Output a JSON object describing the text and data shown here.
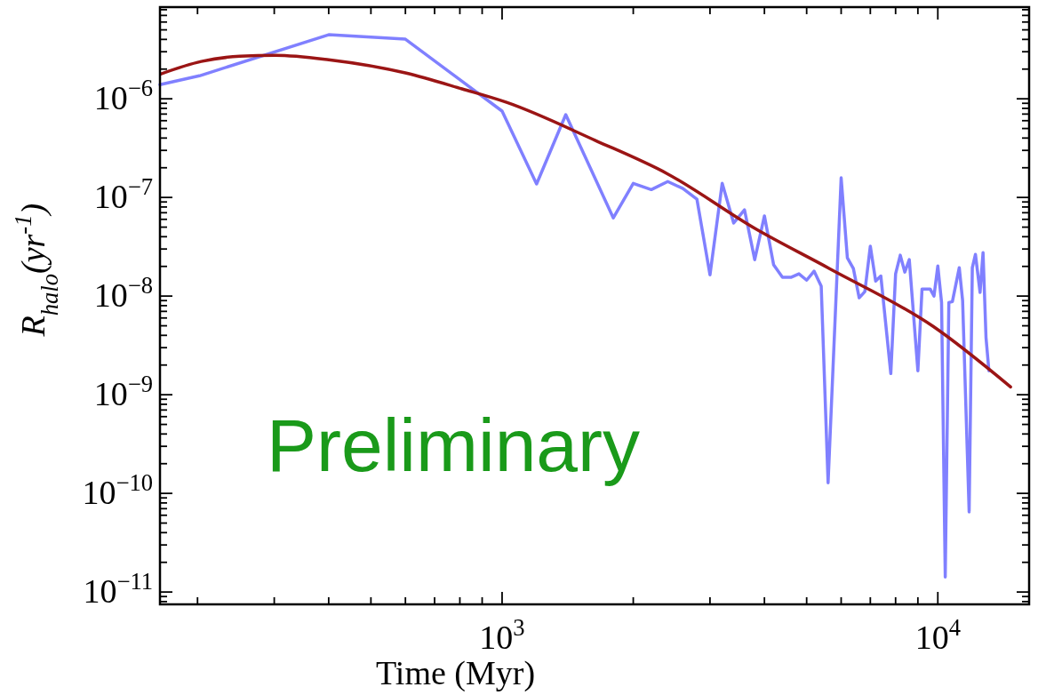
{
  "chart_data": {
    "type": "line",
    "xlabel": "Time (Myr)",
    "ylabel": "R$_{halo}$(yr$^{-1}$)",
    "log": "xy",
    "grid": false,
    "marker": "none",
    "line_style": "solid",
    "xlim": [
      164,
      16200
    ],
    "ylim": [
      7.5e-12,
      8.5e-06
    ],
    "xticks": [
      {
        "value": 200,
        "label": null
      },
      {
        "value": 300,
        "label": null
      },
      {
        "value": 400,
        "label": null
      },
      {
        "value": 500,
        "label": null
      },
      {
        "value": 600,
        "label": null
      },
      {
        "value": 700,
        "label": null
      },
      {
        "value": 800,
        "label": null
      },
      {
        "value": 900,
        "label": null
      },
      {
        "value": 1000,
        "label": "10$^{3}$"
      },
      {
        "value": 2000,
        "label": null
      },
      {
        "value": 3000,
        "label": null
      },
      {
        "value": 4000,
        "label": null
      },
      {
        "value": 5000,
        "label": null
      },
      {
        "value": 6000,
        "label": null
      },
      {
        "value": 7000,
        "label": null
      },
      {
        "value": 8000,
        "label": null
      },
      {
        "value": 9000,
        "label": null
      },
      {
        "value": 10000,
        "label": "10$^{4}$"
      }
    ],
    "yticks": [
      {
        "value": 8e-12,
        "label": null
      },
      {
        "value": 9e-12,
        "label": null
      },
      {
        "value": 1e-11,
        "label": "10$^{−11}$"
      },
      {
        "value": 2e-11,
        "label": null
      },
      {
        "value": 3e-11,
        "label": null
      },
      {
        "value": 4e-11,
        "label": null
      },
      {
        "value": 5e-11,
        "label": null
      },
      {
        "value": 6e-11,
        "label": null
      },
      {
        "value": 7e-11,
        "label": null
      },
      {
        "value": 8e-11,
        "label": null
      },
      {
        "value": 9e-11,
        "label": null
      },
      {
        "value": 1e-10,
        "label": "10$^{−10}$"
      },
      {
        "value": 2e-10,
        "label": null
      },
      {
        "value": 3e-10,
        "label": null
      },
      {
        "value": 4e-10,
        "label": null
      },
      {
        "value": 5e-10,
        "label": null
      },
      {
        "value": 6e-10,
        "label": null
      },
      {
        "value": 7e-10,
        "label": null
      },
      {
        "value": 8e-10,
        "label": null
      },
      {
        "value": 9e-10,
        "label": null
      },
      {
        "value": 1e-09,
        "label": "10$^{−9}$"
      },
      {
        "value": 2e-09,
        "label": null
      },
      {
        "value": 3e-09,
        "label": null
      },
      {
        "value": 4e-09,
        "label": null
      },
      {
        "value": 5e-09,
        "label": null
      },
      {
        "value": 6e-09,
        "label": null
      },
      {
        "value": 7e-09,
        "label": null
      },
      {
        "value": 8e-09,
        "label": null
      },
      {
        "value": 9e-09,
        "label": null
      },
      {
        "value": 1e-08,
        "label": "10$^{−8}$"
      },
      {
        "value": 2e-08,
        "label": null
      },
      {
        "value": 3e-08,
        "label": null
      },
      {
        "value": 4e-08,
        "label": null
      },
      {
        "value": 5e-08,
        "label": null
      },
      {
        "value": 6e-08,
        "label": null
      },
      {
        "value": 7e-08,
        "label": null
      },
      {
        "value": 8e-08,
        "label": null
      },
      {
        "value": 9e-08,
        "label": null
      },
      {
        "value": 1e-07,
        "label": "10$^{−7}$"
      },
      {
        "value": 2e-07,
        "label": null
      },
      {
        "value": 3e-07,
        "label": null
      },
      {
        "value": 4e-07,
        "label": null
      },
      {
        "value": 5e-07,
        "label": null
      },
      {
        "value": 6e-07,
        "label": null
      },
      {
        "value": 7e-07,
        "label": null
      },
      {
        "value": 8e-07,
        "label": null
      },
      {
        "value": 9e-07,
        "label": null
      },
      {
        "value": 1e-06,
        "label": "10$^{−6}$"
      },
      {
        "value": 2e-06,
        "label": null
      },
      {
        "value": 3e-06,
        "label": null
      },
      {
        "value": 4e-06,
        "label": null
      },
      {
        "value": 5e-06,
        "label": null
      },
      {
        "value": 6e-06,
        "label": null
      },
      {
        "value": 7e-06,
        "label": null
      },
      {
        "value": 8e-06,
        "label": null
      }
    ],
    "annotations": [
      "Preliminary"
    ],
    "series": [
      {
        "color": "#8080ff",
        "x": [
          164,
          202,
          400,
          600,
          1000,
          1200,
          1400,
          1800,
          2000,
          2200,
          2400,
          2600,
          2800,
          3000,
          3200,
          3400,
          3600,
          3800,
          4000,
          4200,
          4400,
          4600,
          4800,
          5000,
          5200,
          5400,
          5600,
          6000,
          6200,
          6400,
          6600,
          6800,
          7000,
          7200,
          7400,
          7800,
          8000,
          8200,
          8400,
          8600,
          9000,
          9200,
          9600,
          9800,
          10000,
          10200,
          10400,
          10600,
          10800,
          11200,
          11400,
          11800,
          12000,
          12200,
          12500,
          12700,
          12900,
          13100
        ],
        "values": [
          1.39e-06,
          1.71e-06,
          4.46e-06,
          4.02e-06,
          7.5e-07,
          1.37e-07,
          6.9e-07,
          6.2e-08,
          1.39e-07,
          1.2e-07,
          1.45e-07,
          1.23e-07,
          9.6e-08,
          1.64e-08,
          1.39e-07,
          5.5e-08,
          7.5e-08,
          2.34e-08,
          6.5e-08,
          2.07e-08,
          1.55e-08,
          1.55e-08,
          1.68e-08,
          1.45e-08,
          1.79e-08,
          1.26e-08,
          1.28e-10,
          1.58e-07,
          2.44e-08,
          1.9e-08,
          9.6e-09,
          1.11e-08,
          3.2e-08,
          1.42e-08,
          1.6e-08,
          1.64e-09,
          1.68e-08,
          2.6e-08,
          1.75e-08,
          2.34e-08,
          1.75e-09,
          1.18e-08,
          1.18e-08,
          1e-08,
          2.02e-08,
          8.6e-09,
          1.42e-11,
          8.6e-09,
          8.8e-09,
          1.94e-08,
          9e-09,
          6.5e-11,
          1.94e-08,
          2.65e-08,
          1.09e-08,
          2.76e-08,
          3.8e-09,
          1.75e-09
        ]
      },
      {
        "type": "line",
        "color": "#9b1515",
        "x": [
          165,
          204,
          250,
          302,
          400,
          603,
          809,
          1024,
          1638,
          2388,
          3819,
          5640,
          9775,
          14690
        ],
        "values": [
          1.79e-06,
          2.39e-06,
          2.7e-06,
          2.76e-06,
          2.49e-06,
          1.82e-06,
          1.26e-06,
          9.2e-07,
          3.78e-07,
          1.75e-07,
          4.8e-08,
          1.9e-08,
          4.9e-09,
          1.2e-09
        ]
      }
    ]
  }
}
